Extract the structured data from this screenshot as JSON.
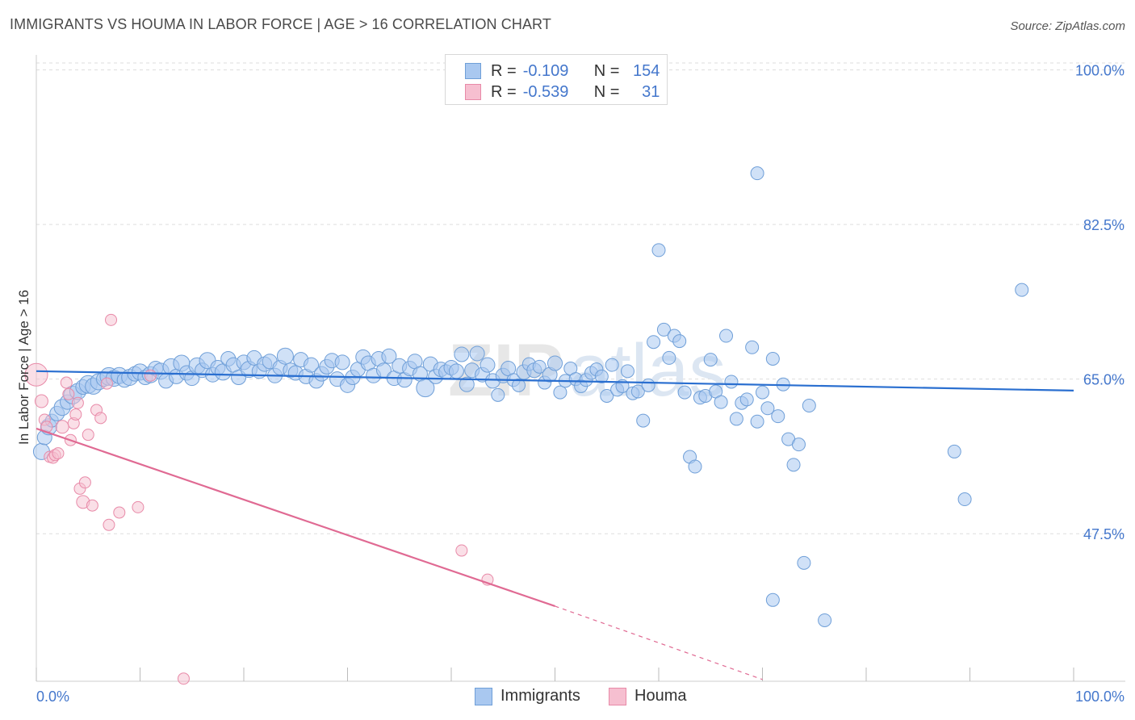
{
  "title": "IMMIGRANTS VS HOUMA IN LABOR FORCE | AGE > 16 CORRELATION CHART",
  "source": "Source: ZipAtlas.com",
  "legend": {
    "rows": [
      {
        "r_label": "R =",
        "r_value": "-0.109",
        "n_label": "N =",
        "n_value": "154"
      },
      {
        "r_label": "R =",
        "r_value": "-0.539",
        "n_label": "N =",
        "n_value": "31"
      }
    ]
  },
  "bottom_legend": {
    "immigrants": "Immigrants",
    "houma": "Houma"
  },
  "axes": {
    "y_label": "In Labor Force | Age > 16",
    "x_min_label": "0.0%",
    "x_max_label": "100.0%"
  },
  "colors": {
    "immigrants_fill": "#a9c8f0",
    "immigrants_stroke": "#6f9fd8",
    "immigrants_line": "#2a6fd0",
    "houma_fill": "#f6bfd0",
    "houma_stroke": "#e88aa8",
    "houma_line": "#e06a93",
    "tick_label": "#4477cc",
    "grid": "#dddddd"
  },
  "chart_data": {
    "type": "scatter",
    "title": "IMMIGRANTS VS HOUMA IN LABOR FORCE | AGE > 16 CORRELATION CHART",
    "xlabel": "",
    "ylabel": "In Labor Force | Age > 16",
    "xlim": [
      0,
      100
    ],
    "ylim": [
      30.8,
      101.7
    ],
    "y_ticks": [
      {
        "value": 100.0,
        "label": "100.0%"
      },
      {
        "value": 82.5,
        "label": "82.5%"
      },
      {
        "value": 65.0,
        "label": "65.0%"
      },
      {
        "value": 47.5,
        "label": "47.5%"
      }
    ],
    "x_ticks": [
      0,
      10,
      20,
      30,
      40,
      50,
      60,
      70,
      80,
      90,
      100
    ],
    "x_tick_labels": [
      {
        "value": 0,
        "label": "0.0%"
      },
      {
        "value": 100,
        "label": "100.0%"
      }
    ],
    "grid": true,
    "legend_position": "top-center",
    "series": [
      {
        "name": "Immigrants",
        "R": -0.109,
        "N": 154,
        "trend": {
          "x": [
            0,
            100
          ],
          "y": [
            65.9,
            63.7
          ],
          "dashed_from": null
        },
        "points": [
          [
            0.5,
            56.8,
            10
          ],
          [
            0.8,
            58.4,
            9
          ],
          [
            1.2,
            59.6,
            10
          ],
          [
            1.5,
            60.3,
            8
          ],
          [
            2.0,
            61.1,
            9
          ],
          [
            2.5,
            61.8,
            10
          ],
          [
            3.0,
            62.4,
            9
          ],
          [
            3.5,
            63.2,
            11
          ],
          [
            4.0,
            63.6,
            10
          ],
          [
            4.5,
            64.1,
            9
          ],
          [
            5.0,
            64.4,
            11
          ],
          [
            5.5,
            64.2,
            10
          ],
          [
            6.0,
            64.7,
            10
          ],
          [
            6.5,
            65.0,
            9
          ],
          [
            7.0,
            65.3,
            11
          ],
          [
            7.5,
            65.1,
            10
          ],
          [
            8.0,
            65.4,
            10
          ],
          [
            8.5,
            64.9,
            9
          ],
          [
            9.0,
            65.2,
            10
          ],
          [
            9.5,
            65.6,
            9
          ],
          [
            10.0,
            65.8,
            10
          ],
          [
            10.5,
            65.2,
            9
          ],
          [
            11.0,
            65.5,
            10
          ],
          [
            11.5,
            66.2,
            9
          ],
          [
            12.0,
            65.9,
            10
          ],
          [
            12.5,
            64.8,
            9
          ],
          [
            13.0,
            66.4,
            10
          ],
          [
            13.5,
            65.3,
            9
          ],
          [
            14.0,
            66.8,
            10
          ],
          [
            14.5,
            65.7,
            9
          ],
          [
            15.0,
            65.1,
            9
          ],
          [
            15.5,
            66.5,
            10
          ],
          [
            16.0,
            66.0,
            9
          ],
          [
            16.5,
            67.1,
            10
          ],
          [
            17.0,
            65.5,
            9
          ],
          [
            17.5,
            66.3,
            9
          ],
          [
            18.0,
            65.8,
            10
          ],
          [
            18.5,
            67.3,
            9
          ],
          [
            19.0,
            66.6,
            9
          ],
          [
            19.5,
            65.2,
            9
          ],
          [
            20.0,
            66.9,
            9
          ],
          [
            20.5,
            66.1,
            10
          ],
          [
            21.0,
            67.4,
            9
          ],
          [
            21.5,
            65.9,
            9
          ],
          [
            22.0,
            66.7,
            9
          ],
          [
            22.5,
            67.0,
            9
          ],
          [
            23.0,
            65.4,
            9
          ],
          [
            23.5,
            66.3,
            9
          ],
          [
            24.0,
            67.6,
            10
          ],
          [
            24.5,
            66.0,
            9
          ],
          [
            25.0,
            65.7,
            9
          ],
          [
            25.5,
            67.2,
            9
          ],
          [
            26.0,
            65.3,
            9
          ],
          [
            26.5,
            66.6,
            9
          ],
          [
            27.0,
            64.8,
            9
          ],
          [
            27.5,
            65.6,
            9
          ],
          [
            28.0,
            66.4,
            9
          ],
          [
            28.5,
            67.1,
            9
          ],
          [
            29.0,
            65.0,
            9
          ],
          [
            29.5,
            66.9,
            9
          ],
          [
            30.0,
            64.3,
            9
          ],
          [
            30.5,
            65.2,
            9
          ],
          [
            31.0,
            66.1,
            9
          ],
          [
            31.5,
            67.5,
            9
          ],
          [
            32.0,
            66.8,
            9
          ],
          [
            32.5,
            65.4,
            9
          ],
          [
            33.0,
            67.3,
            9
          ],
          [
            33.5,
            66.0,
            9
          ],
          [
            34.0,
            67.6,
            9
          ],
          [
            34.5,
            65.1,
            9
          ],
          [
            35.0,
            66.5,
            9
          ],
          [
            35.5,
            64.9,
            9
          ],
          [
            36.0,
            66.2,
            9
          ],
          [
            36.5,
            67.0,
            9
          ],
          [
            37.0,
            65.6,
            9
          ],
          [
            37.5,
            64.0,
            11
          ],
          [
            38.0,
            66.7,
            9
          ],
          [
            38.5,
            65.3,
            9
          ],
          [
            39.0,
            66.1,
            9
          ],
          [
            39.5,
            65.8,
            9
          ],
          [
            40.0,
            66.3,
            9
          ],
          [
            40.5,
            65.9,
            9
          ],
          [
            41.0,
            67.8,
            9
          ],
          [
            41.5,
            64.4,
            9
          ],
          [
            42.0,
            66.0,
            9
          ],
          [
            42.5,
            67.9,
            9
          ],
          [
            43.0,
            65.5,
            9
          ],
          [
            43.5,
            66.6,
            9
          ],
          [
            44.0,
            64.8,
            9
          ],
          [
            44.5,
            63.2,
            8
          ],
          [
            45.0,
            65.4,
            9
          ],
          [
            45.5,
            66.2,
            9
          ],
          [
            46.0,
            64.9,
            8
          ],
          [
            46.5,
            64.3,
            8
          ],
          [
            47.0,
            65.8,
            9
          ],
          [
            47.5,
            66.7,
            8
          ],
          [
            48.0,
            66.0,
            9
          ],
          [
            48.5,
            66.4,
            8
          ],
          [
            49.0,
            64.6,
            8
          ],
          [
            49.5,
            65.5,
            9
          ],
          [
            50.0,
            66.8,
            9
          ],
          [
            50.5,
            63.5,
            8
          ],
          [
            51.0,
            64.8,
            8
          ],
          [
            51.5,
            66.2,
            8
          ],
          [
            52.0,
            65.0,
            8
          ],
          [
            52.5,
            64.2,
            8
          ],
          [
            53.0,
            64.9,
            8
          ],
          [
            53.5,
            65.7,
            8
          ],
          [
            54.0,
            66.1,
            8
          ],
          [
            54.5,
            65.3,
            8
          ],
          [
            55.0,
            63.1,
            8
          ],
          [
            55.5,
            66.6,
            8
          ],
          [
            56.0,
            63.8,
            8
          ],
          [
            56.5,
            64.2,
            8
          ],
          [
            57.0,
            65.9,
            8
          ],
          [
            57.5,
            63.4,
            8
          ],
          [
            58.0,
            63.6,
            8
          ],
          [
            58.5,
            60.3,
            8
          ],
          [
            59.0,
            64.3,
            8
          ],
          [
            59.5,
            69.2,
            8
          ],
          [
            60.0,
            79.6,
            8
          ],
          [
            60.5,
            70.6,
            8
          ],
          [
            61.0,
            67.4,
            8
          ],
          [
            61.5,
            69.9,
            8
          ],
          [
            62.0,
            69.3,
            8
          ],
          [
            62.5,
            63.5,
            8
          ],
          [
            63.0,
            56.2,
            8
          ],
          [
            63.5,
            55.1,
            8
          ],
          [
            64.0,
            62.9,
            8
          ],
          [
            64.5,
            63.1,
            8
          ],
          [
            65.0,
            67.2,
            8
          ],
          [
            65.5,
            63.6,
            8
          ],
          [
            66.0,
            62.4,
            8
          ],
          [
            66.5,
            69.9,
            8
          ],
          [
            67.0,
            64.7,
            8
          ],
          [
            67.5,
            60.5,
            8
          ],
          [
            68.0,
            62.3,
            8
          ],
          [
            68.5,
            62.7,
            8
          ],
          [
            69.0,
            68.6,
            8
          ],
          [
            69.5,
            60.2,
            8
          ],
          [
            70.0,
            63.5,
            8
          ],
          [
            70.5,
            61.7,
            8
          ],
          [
            71.0,
            67.3,
            8
          ],
          [
            71.5,
            60.8,
            8
          ],
          [
            72.0,
            64.4,
            8
          ],
          [
            72.5,
            58.2,
            8
          ],
          [
            73.0,
            55.3,
            8
          ],
          [
            73.5,
            57.6,
            8
          ],
          [
            74.0,
            44.2,
            8
          ],
          [
            74.5,
            62.0,
            8
          ],
          [
            69.5,
            88.3,
            8
          ],
          [
            76.0,
            37.7,
            8
          ],
          [
            88.5,
            56.8,
            8
          ],
          [
            89.5,
            51.4,
            8
          ],
          [
            95.0,
            75.1,
            8
          ],
          [
            71.0,
            40.0,
            8
          ]
        ]
      },
      {
        "name": "Houma",
        "R": -0.539,
        "N": 31,
        "trend": {
          "x": [
            0,
            50,
            70
          ],
          "y": [
            59.4,
            39.3,
            31.0
          ],
          "dashed_from": 50
        },
        "points": [
          [
            0.0,
            65.5,
            14
          ],
          [
            0.5,
            62.5,
            8
          ],
          [
            0.8,
            60.4,
            7
          ],
          [
            1.0,
            59.6,
            7
          ],
          [
            1.3,
            56.2,
            7
          ],
          [
            1.6,
            56.1,
            7
          ],
          [
            1.8,
            56.4,
            7
          ],
          [
            2.1,
            56.6,
            7
          ],
          [
            2.5,
            59.6,
            8
          ],
          [
            2.9,
            64.6,
            7
          ],
          [
            3.1,
            63.3,
            7
          ],
          [
            3.3,
            58.1,
            7
          ],
          [
            3.6,
            60.0,
            7
          ],
          [
            3.8,
            61.0,
            7
          ],
          [
            4.0,
            62.3,
            7
          ],
          [
            4.2,
            52.6,
            7
          ],
          [
            4.5,
            51.1,
            8
          ],
          [
            4.7,
            53.3,
            7
          ],
          [
            5.0,
            58.7,
            7
          ],
          [
            5.4,
            50.7,
            7
          ],
          [
            5.8,
            61.5,
            7
          ],
          [
            6.2,
            60.6,
            7
          ],
          [
            6.8,
            64.5,
            7
          ],
          [
            7.2,
            71.7,
            7
          ],
          [
            7.0,
            48.5,
            7
          ],
          [
            8.0,
            49.9,
            7
          ],
          [
            9.8,
            50.5,
            7
          ],
          [
            11.0,
            65.4,
            7
          ],
          [
            14.2,
            31.1,
            7
          ],
          [
            41.0,
            45.6,
            7
          ],
          [
            43.5,
            42.3,
            7
          ]
        ]
      }
    ]
  }
}
